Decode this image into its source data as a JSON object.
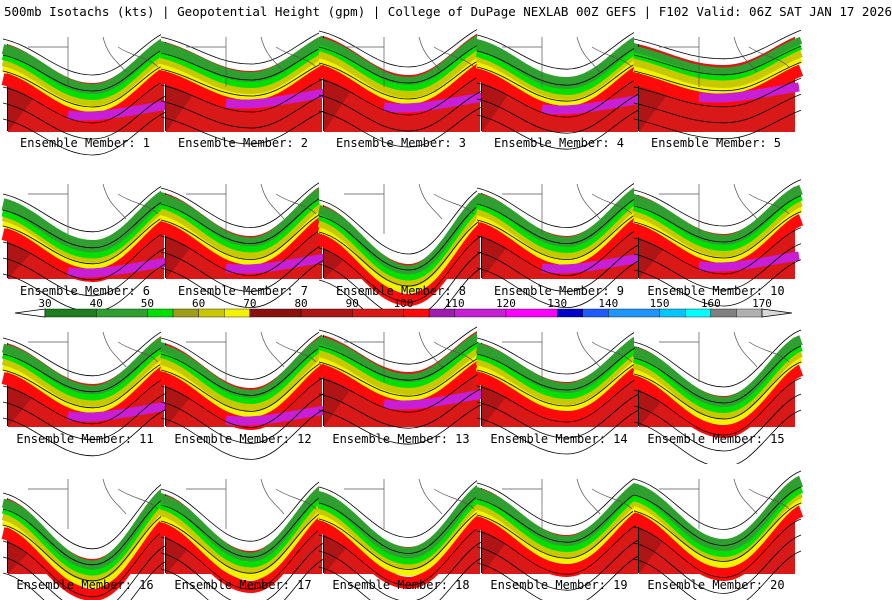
{
  "header": {
    "title": "500mb Isotachs (kts) | Geopotential Height (gpm) | College of DuPage NEXLAB   00Z GEFS | F102 Valid: 06Z SAT JAN 17 2026"
  },
  "colorbar": {
    "ticks": [
      "30",
      "40",
      "50",
      "60",
      "70",
      "80",
      "90",
      "100",
      "110",
      "120",
      "130",
      "140",
      "150",
      "160",
      "170"
    ],
    "bins": [
      {
        "from": 30,
        "color": "#1e7d1e"
      },
      {
        "from": 40,
        "color": "#2fa02f"
      },
      {
        "from": 50,
        "color": "#00e000"
      },
      {
        "from": 55,
        "color": "#9e9e17"
      },
      {
        "from": 60,
        "color": "#c8c800"
      },
      {
        "from": 65,
        "color": "#f3f300"
      },
      {
        "from": 70,
        "color": "#8b1010"
      },
      {
        "from": 80,
        "color": "#b01515"
      },
      {
        "from": 90,
        "color": "#d91818"
      },
      {
        "from": 100,
        "color": "#ff0a0a"
      },
      {
        "from": 105,
        "color": "#a01bb0"
      },
      {
        "from": 110,
        "color": "#c81ed6"
      },
      {
        "from": 120,
        "color": "#ff00ff"
      },
      {
        "from": 130,
        "color": "#0000c8"
      },
      {
        "from": 135,
        "color": "#1e5aff"
      },
      {
        "from": 140,
        "color": "#1e96ff"
      },
      {
        "from": 150,
        "color": "#00c8ff"
      },
      {
        "from": 155,
        "color": "#00ffff"
      },
      {
        "from": 160,
        "color": "#808080"
      },
      {
        "from": 165,
        "color": "#b0b0b0"
      },
      {
        "from": 170,
        "color": "#d8d8d8"
      }
    ]
  },
  "members": [
    {
      "label": "Ensemble Member: 1"
    },
    {
      "label": "Ensemble Member: 2"
    },
    {
      "label": "Ensemble Member: 3"
    },
    {
      "label": "Ensemble Member: 4"
    },
    {
      "label": "Ensemble Member: 5"
    },
    {
      "label": "Ensemble Member: 6"
    },
    {
      "label": "Ensemble Member: 7"
    },
    {
      "label": "Ensemble Member: 8"
    },
    {
      "label": "Ensemble Member: 9"
    },
    {
      "label": "Ensemble Member: 10"
    },
    {
      "label": "Ensemble Member: 11"
    },
    {
      "label": "Ensemble Member: 12"
    },
    {
      "label": "Ensemble Member: 13"
    },
    {
      "label": "Ensemble Member: 14"
    },
    {
      "label": "Ensemble Member: 15"
    },
    {
      "label": "Ensemble Member: 16"
    },
    {
      "label": "Ensemble Member: 17"
    },
    {
      "label": "Ensemble Member: 18"
    },
    {
      "label": "Ensemble Member: 19"
    },
    {
      "label": "Ensemble Member: 20"
    }
  ]
}
